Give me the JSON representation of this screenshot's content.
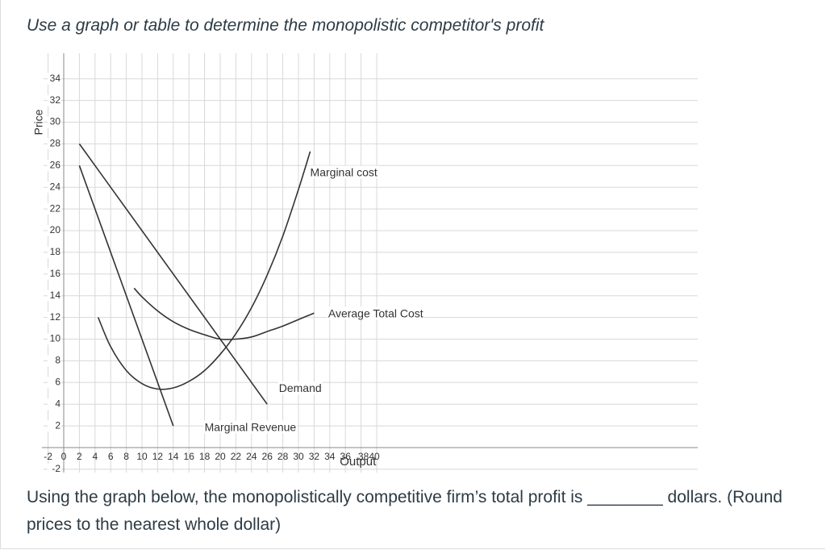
{
  "question": {
    "title": "Use a graph or table to determine the monopolistic competitor's profit"
  },
  "answer": {
    "before": "Using the graph below,  the monopolistically competitive firm’s total profit is ",
    "blank": "________",
    "after": " dollars. (Round prices to the nearest whole dollar)"
  },
  "colors": {
    "curve": "#333333",
    "grid": "#d8d8d8",
    "text": "#2d3b45"
  },
  "chart_data": {
    "type": "line",
    "xlabel": "Output",
    "ylabel": "Price",
    "xlim": [
      -2,
      40
    ],
    "ylim": [
      -2,
      34
    ],
    "x_ticks": [
      -2,
      0,
      2,
      4,
      6,
      8,
      10,
      12,
      14,
      16,
      18,
      20,
      22,
      24,
      26,
      28,
      30,
      32,
      34,
      36,
      38,
      40
    ],
    "y_ticks": [
      -2,
      2,
      4,
      6,
      8,
      10,
      12,
      14,
      16,
      18,
      20,
      22,
      24,
      26,
      28,
      30,
      32,
      34
    ],
    "grid": true,
    "series": [
      {
        "name": "Marginal cost",
        "points": [
          [
            4.4,
            12
          ],
          [
            6,
            9.3
          ],
          [
            8,
            7.1
          ],
          [
            10,
            5.9
          ],
          [
            12,
            5.4
          ],
          [
            14,
            5.5
          ],
          [
            16,
            6.1
          ],
          [
            18,
            7.1
          ],
          [
            20,
            8.6
          ],
          [
            22,
            10.5
          ],
          [
            24,
            12.9
          ],
          [
            26,
            15.9
          ],
          [
            28,
            19.5
          ],
          [
            30,
            23.8
          ],
          [
            31.5,
            27.3
          ]
        ]
      },
      {
        "name": "Average Total Cost",
        "points": [
          [
            9,
            14.7
          ],
          [
            10,
            13.9
          ],
          [
            12,
            12.6
          ],
          [
            14,
            11.6
          ],
          [
            16,
            10.9
          ],
          [
            18,
            10.4
          ],
          [
            20,
            10.0
          ],
          [
            22,
            10.0
          ],
          [
            24,
            10.2
          ],
          [
            26,
            10.7
          ],
          [
            28,
            11.2
          ],
          [
            30,
            11.8
          ],
          [
            32,
            12.4
          ]
        ]
      },
      {
        "name": "Demand",
        "points": [
          [
            2,
            28
          ],
          [
            26,
            4
          ]
        ]
      },
      {
        "name": "Marginal Revenue",
        "points": [
          [
            2,
            26
          ],
          [
            14,
            2
          ]
        ]
      }
    ],
    "annotations": [
      {
        "text": "Marginal cost",
        "x": 31.5,
        "y": 25.3,
        "for": "Marginal cost"
      },
      {
        "text": "Average Total Cost",
        "x": 33.8,
        "y": 12.3,
        "for": "Average Total Cost"
      },
      {
        "text": "Demand",
        "x": 27.5,
        "y": 5.4,
        "for": "Demand"
      },
      {
        "text": "Marginal Revenue",
        "x": 18,
        "y": 1.8,
        "for": "Marginal Revenue"
      }
    ]
  }
}
